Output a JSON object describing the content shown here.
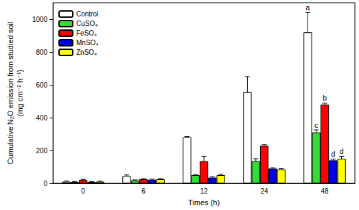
{
  "chart_data": {
    "type": "bar",
    "xlabel": "Times (h)",
    "ylabel": [
      "Cumulative N₂O emission from studied soil",
      "(mg cm⁻² h⁻¹)"
    ],
    "categories": [
      "0",
      "6",
      "12",
      "24",
      "48"
    ],
    "ylim": [
      0,
      1100
    ],
    "yticks": [
      0,
      200,
      400,
      600,
      800,
      1000
    ],
    "grid": false,
    "legend": "upper left",
    "series": [
      {
        "name": "Control",
        "color": "#ffffff",
        "values": [
          10,
          45,
          280,
          555,
          920
        ],
        "errors": [
          4,
          6,
          5,
          95,
          120
        ],
        "letters": [
          null,
          null,
          null,
          null,
          "a"
        ]
      },
      {
        "name": "CuSO₄",
        "color": "#33dd33",
        "values": [
          8,
          18,
          50,
          135,
          310
        ],
        "errors": [
          3,
          3,
          4,
          15,
          15
        ],
        "letters": [
          null,
          null,
          null,
          null,
          "c"
        ]
      },
      {
        "name": "FeSO₄",
        "color": "#ff0000",
        "values": [
          20,
          25,
          135,
          230,
          480
        ],
        "errors": [
          4,
          4,
          30,
          5,
          8
        ],
        "letters": [
          null,
          null,
          null,
          null,
          "b"
        ]
      },
      {
        "name": "MnSO₄",
        "color": "#0000ee",
        "values": [
          8,
          22,
          35,
          90,
          140
        ],
        "errors": [
          3,
          3,
          4,
          5,
          8
        ],
        "letters": [
          null,
          null,
          null,
          null,
          "d"
        ]
      },
      {
        "name": "ZnSO₄",
        "color": "#ffff00",
        "values": [
          10,
          25,
          50,
          85,
          150
        ],
        "errors": [
          3,
          4,
          6,
          5,
          15
        ],
        "letters": [
          null,
          null,
          null,
          null,
          "d"
        ]
      }
    ]
  }
}
